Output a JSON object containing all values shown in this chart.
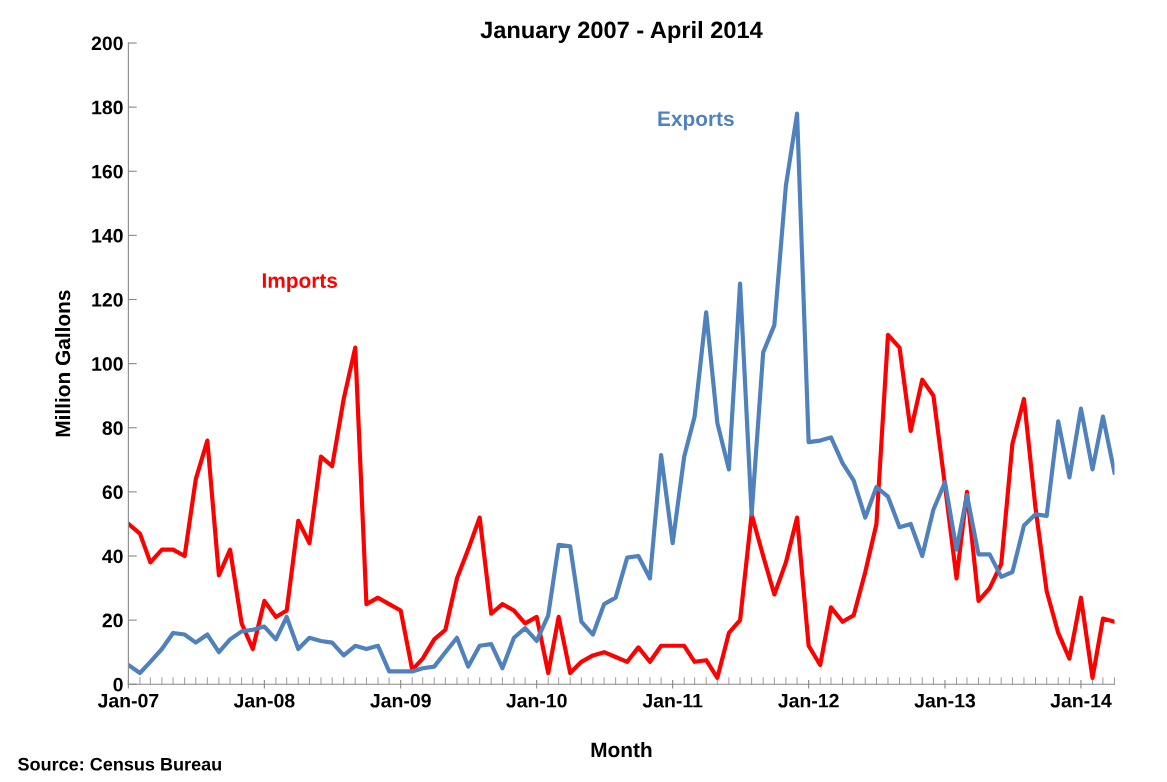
{
  "chart_data": {
    "type": "line",
    "title": "January 2007 - April 2014",
    "xlabel": "Month",
    "ylabel": "Million Gallons",
    "annotations": [
      "Source: Census Bureau"
    ],
    "x": [
      "2007-01",
      "2007-02",
      "2007-03",
      "2007-04",
      "2007-05",
      "2007-06",
      "2007-07",
      "2007-08",
      "2007-09",
      "2007-10",
      "2007-11",
      "2007-12",
      "2008-01",
      "2008-02",
      "2008-03",
      "2008-04",
      "2008-05",
      "2008-06",
      "2008-07",
      "2008-08",
      "2008-09",
      "2008-10",
      "2008-11",
      "2008-12",
      "2009-01",
      "2009-02",
      "2009-03",
      "2009-04",
      "2009-05",
      "2009-06",
      "2009-07",
      "2009-08",
      "2009-09",
      "2009-10",
      "2009-11",
      "2009-12",
      "2010-01",
      "2010-02",
      "2010-03",
      "2010-04",
      "2010-05",
      "2010-06",
      "2010-07",
      "2010-08",
      "2010-09",
      "2010-10",
      "2010-11",
      "2010-12",
      "2011-01",
      "2011-02",
      "2011-03",
      "2011-04",
      "2011-05",
      "2011-06",
      "2011-07",
      "2011-08",
      "2011-09",
      "2011-10",
      "2011-11",
      "2011-12",
      "2012-01",
      "2012-02",
      "2012-03",
      "2012-04",
      "2012-05",
      "2012-06",
      "2012-07",
      "2012-08",
      "2012-09",
      "2012-10",
      "2012-11",
      "2012-12",
      "2013-01",
      "2013-02",
      "2013-03",
      "2013-04",
      "2013-05",
      "2013-06",
      "2013-07",
      "2013-08",
      "2013-09",
      "2013-10",
      "2013-11",
      "2013-12",
      "2014-01",
      "2014-02",
      "2014-03",
      "2014-04"
    ],
    "series": [
      {
        "name": "Imports",
        "color": "#ff0000",
        "values": [
          50,
          47,
          38,
          42,
          42,
          40,
          64,
          76,
          34,
          42,
          19,
          11,
          26,
          21,
          23,
          51,
          44,
          71,
          68,
          89,
          105,
          25,
          27,
          25,
          23,
          4.5,
          8,
          14,
          17,
          33,
          42,
          52,
          22,
          25,
          23,
          19,
          21,
          3.5,
          21,
          3.5,
          7,
          9,
          10,
          8.5,
          7,
          11.5,
          7,
          12,
          12,
          12,
          7,
          7.5,
          2,
          16,
          20,
          53,
          40,
          28,
          38,
          52,
          12,
          6,
          24,
          19.5,
          21.5,
          35,
          50,
          109,
          105,
          79,
          95,
          90,
          62,
          33,
          60,
          26,
          30,
          37.5,
          75,
          89,
          55,
          29,
          16,
          8,
          27,
          2,
          20.5,
          19.5
        ]
      },
      {
        "name": "Exports",
        "color": "#4f81bd",
        "values": [
          6,
          3.5,
          7,
          11,
          16,
          15.5,
          13,
          15.5,
          10,
          14,
          16.5,
          17,
          18,
          14,
          21,
          11,
          14.5,
          13.5,
          13,
          9,
          12,
          11,
          12,
          4,
          4,
          4,
          5,
          5.5,
          10,
          14.5,
          5.5,
          12,
          12.5,
          5,
          14.5,
          17.5,
          13.5,
          21.5,
          43.5,
          43,
          19.5,
          15.5,
          25,
          27,
          39.5,
          40,
          33,
          71.5,
          44,
          71,
          83.5,
          116,
          81.5,
          67,
          125,
          53,
          103.5,
          112,
          155.5,
          178,
          75.5,
          76,
          77,
          69,
          63.5,
          52,
          61.5,
          58.5,
          49,
          50,
          40,
          54.5,
          63,
          42,
          59,
          40.5,
          40.5,
          33.5,
          35,
          49.5,
          53,
          52.5,
          82,
          64.5,
          86,
          67,
          83.5,
          66
        ]
      }
    ],
    "xlim": [
      "2007-01",
      "2014-04"
    ],
    "xticks": [
      {
        "value": "2007-01",
        "label": "Jan-07"
      },
      {
        "value": "2008-01",
        "label": "Jan-08"
      },
      {
        "value": "2009-01",
        "label": "Jan-09"
      },
      {
        "value": "2010-01",
        "label": "Jan-10"
      },
      {
        "value": "2011-01",
        "label": "Jan-11"
      },
      {
        "value": "2012-01",
        "label": "Jan-12"
      },
      {
        "value": "2013-01",
        "label": "Jan-13"
      },
      {
        "value": "2014-01",
        "label": "Jan-14"
      }
    ],
    "ylim": [
      0,
      200
    ],
    "yticks": [
      0,
      20,
      40,
      60,
      80,
      100,
      120,
      140,
      160,
      180,
      200
    ],
    "grid": false,
    "legend": false,
    "marker": "none",
    "line_style": "solid"
  }
}
